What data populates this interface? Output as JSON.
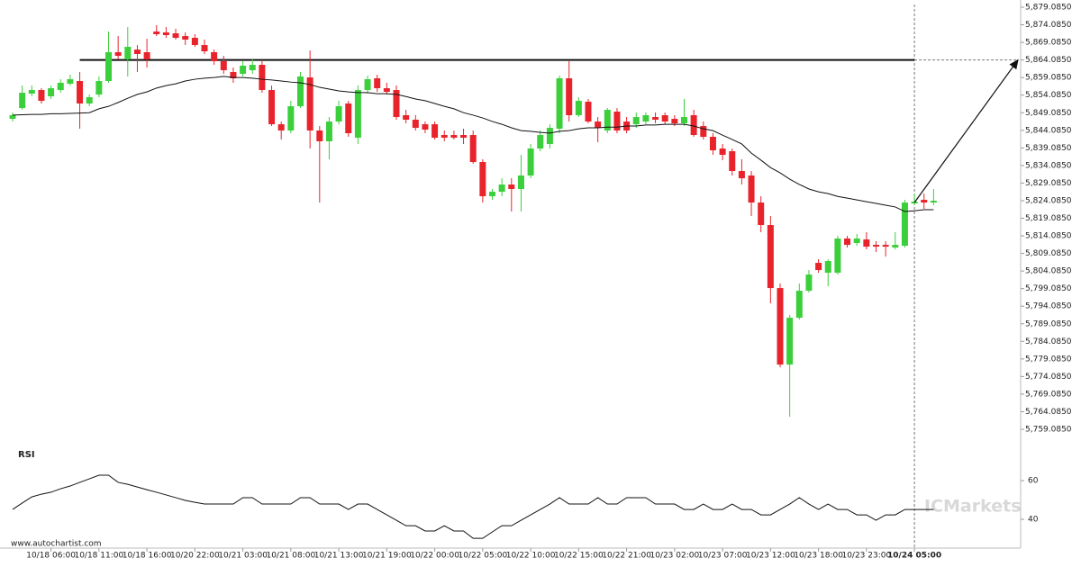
{
  "chart_data": [
    {
      "type": "candlestick",
      "categories": [
        null,
        null,
        null,
        null,
        "10/18 06:00",
        null,
        null,
        null,
        null,
        "10/18 11:00",
        null,
        null,
        null,
        null,
        "10/18 16:00",
        null,
        null,
        null,
        null,
        "10/20 22:00",
        null,
        null,
        null,
        null,
        "10/21 03:00",
        null,
        null,
        null,
        null,
        "10/21 08:00",
        null,
        null,
        null,
        null,
        "10/21 13:00",
        null,
        null,
        null,
        null,
        "10/21 19:00",
        null,
        null,
        null,
        null,
        "10/22 00:00",
        null,
        null,
        null,
        null,
        "10/22 05:00",
        null,
        null,
        null,
        null,
        "10/22 10:00",
        null,
        null,
        null,
        null,
        "10/22 15:00",
        null,
        null,
        null,
        null,
        "10/22 21:00",
        null,
        null,
        null,
        null,
        "10/23 02:00",
        null,
        null,
        null,
        null,
        "10/23 07:00",
        null,
        null,
        null,
        null,
        "10/23 12:00",
        null,
        null,
        null,
        null,
        "10/23 18:00",
        null,
        null,
        null,
        null,
        "10/23 23:00",
        null,
        null,
        null,
        null,
        "10/24 05:00",
        null,
        null
      ],
      "open": [
        5847.35,
        5850.42,
        5854.52,
        5855.54,
        5853.75,
        5855.54,
        5857.33,
        5858.1,
        5851.7,
        5854.26,
        5858.1,
        5866.29,
        5864.24,
        5867.05,
        5866.29,
        5872.17,
        5871.92,
        5871.66,
        5870.89,
        5870.38,
        5868.33,
        5866.29,
        5863.73,
        5860.66,
        5860.15,
        5861.17,
        5862.7,
        5855.54,
        5845.81,
        5844.03,
        5850.93,
        5859.12,
        5844.03,
        5840.96,
        5846.58,
        5851.7,
        5841.98,
        5855.54,
        5858.87,
        5856.05,
        5855.54,
        5848.38,
        5847.1,
        5845.81,
        5845.81,
        5842.75,
        5842.75,
        5842.75,
        5842.75,
        5835.07,
        5825.34,
        5826.62,
        5828.67,
        5827.39,
        5831.23,
        5838.91,
        5840.19,
        5844.54,
        5858.87,
        5848.38,
        5852.21,
        5846.58,
        5844.03,
        5849.4,
        5846.58,
        5845.81,
        5846.58,
        5847.86,
        5848.38,
        5847.35,
        5846.07,
        5848.38,
        5845.3,
        5842.24,
        5838.91,
        5838.14,
        5832.51,
        5831.23,
        5823.55,
        5817.16,
        5799.24,
        5777.49,
        5790.8,
        5798.48,
        5806.41,
        5803.6,
        5803.6,
        5813.32,
        5812.04,
        5813.06,
        5811.52,
        5811.52,
        5810.76,
        5811.27,
        5823.3,
        5824.32,
        5823.55
      ],
      "high": [
        5849.14,
        5856.82,
        5856.82,
        5856.05,
        5856.82,
        5858.61,
        5859.89,
        5860.66,
        5854.26,
        5859.38,
        5872.17,
        5870.89,
        5873.45,
        5868.33,
        5870.13,
        5873.97,
        5873.45,
        5872.94,
        5871.92,
        5871.41,
        5869.87,
        5867.05,
        5865.26,
        5861.94,
        5863.73,
        5864.24,
        5863.73,
        5856.82,
        5846.58,
        5852.47,
        5860.66,
        5866.8,
        5845.3,
        5847.86,
        5852.47,
        5852.47,
        5856.82,
        5859.63,
        5859.89,
        5857.59,
        5856.82,
        5849.91,
        5848.38,
        5846.58,
        5846.58,
        5844.03,
        5844.03,
        5844.54,
        5844.03,
        5835.85,
        5827.39,
        5830.46,
        5830.46,
        5837.12,
        5840.19,
        5844.03,
        5845.81,
        5859.63,
        5863.73,
        5853.49,
        5852.98,
        5847.86,
        5850.42,
        5850.42,
        5847.86,
        5849.14,
        5849.14,
        5849.14,
        5849.14,
        5848.38,
        5852.98,
        5849.91,
        5846.58,
        5843.26,
        5840.19,
        5838.91,
        5835.85,
        5832.51,
        5825.34,
        5819.71,
        5800.52,
        5791.57,
        5800.52,
        5804.36,
        5807.43,
        5807.43,
        5814.08,
        5814.08,
        5814.6,
        5815.11,
        5812.55,
        5812.55,
        5815.11,
        5824.32,
        5826.11,
        5826.11,
        5827.39
      ],
      "low": [
        5846.58,
        5849.91,
        5853.75,
        5851.7,
        5852.98,
        5854.77,
        5856.82,
        5844.54,
        5850.93,
        5853.49,
        5857.59,
        5864.24,
        5859.38,
        5860.66,
        5861.94,
        5870.89,
        5870.38,
        5869.87,
        5868.33,
        5867.82,
        5865.78,
        5862.7,
        5860.15,
        5857.59,
        5859.38,
        5860.15,
        5854.77,
        5845.3,
        5841.47,
        5843.26,
        5850.42,
        5838.91,
        5823.55,
        5835.85,
        5845.81,
        5842.24,
        5840.19,
        5854.52,
        5855.03,
        5854.26,
        5847.1,
        5846.07,
        5844.03,
        5843.26,
        5841.47,
        5840.96,
        5841.47,
        5840.19,
        5834.56,
        5823.55,
        5824.32,
        5825.34,
        5820.99,
        5820.99,
        5830.46,
        5838.14,
        5838.91,
        5843.26,
        5846.58,
        5847.86,
        5846.07,
        5840.7,
        5843.26,
        5843.26,
        5843.26,
        5844.79,
        5845.81,
        5846.07,
        5845.81,
        5845.3,
        5845.3,
        5842.24,
        5841.47,
        5837.12,
        5835.58,
        5831.23,
        5828.67,
        5819.71,
        5815.11,
        5794.89,
        5776.72,
        5762.65,
        5790.28,
        5797.96,
        5803.6,
        5799.75,
        5803.08,
        5810.76,
        5811.27,
        5810.24,
        5809.48,
        5808.2,
        5810.24,
        5810.76,
        5822.78,
        5821.76,
        5822.78
      ],
      "close": [
        5848.38,
        5854.77,
        5855.54,
        5852.47,
        5856.05,
        5857.59,
        5858.61,
        5851.7,
        5853.49,
        5858.1,
        5866.29,
        5865.26,
        5867.82,
        5865.78,
        5864.24,
        5871.41,
        5871.15,
        5870.38,
        5869.87,
        5868.33,
        5866.54,
        5863.73,
        5861.17,
        5858.87,
        5862.45,
        5862.7,
        5855.54,
        5845.81,
        5844.03,
        5850.93,
        5859.38,
        5844.03,
        5840.96,
        5846.58,
        5850.93,
        5843.26,
        5855.54,
        5858.61,
        5856.05,
        5855.03,
        5847.86,
        5847.1,
        5844.79,
        5844.28,
        5841.98,
        5841.98,
        5841.98,
        5841.98,
        5835.07,
        5825.34,
        5826.62,
        5828.67,
        5827.39,
        5831.23,
        5838.91,
        5842.75,
        5844.79,
        5858.87,
        5848.38,
        5852.47,
        5846.58,
        5844.79,
        5849.91,
        5844.03,
        5844.03,
        5847.86,
        5848.38,
        5847.1,
        5846.58,
        5846.07,
        5847.86,
        5842.75,
        5842.24,
        5838.4,
        5837.12,
        5832.51,
        5830.46,
        5823.55,
        5817.16,
        5799.24,
        5777.49,
        5790.8,
        5798.48,
        5803.08,
        5804.36,
        5806.92,
        5813.32,
        5811.52,
        5813.32,
        5811.01,
        5811.01,
        5811.01,
        5811.52,
        5823.55,
        5823.81,
        5823.55,
        5824.06
      ],
      "overlay": {
        "color": "#111111",
        "values": [
          5848.4,
          5848.5,
          5848.6,
          5848.6,
          5848.8,
          5848.8,
          5848.9,
          5849.0,
          5849.1,
          5850.2,
          5850.9,
          5852.0,
          5853.2,
          5854.3,
          5855.0,
          5856.1,
          5856.8,
          5857.3,
          5858.1,
          5858.6,
          5858.9,
          5859.1,
          5859.4,
          5859.1,
          5859.1,
          5858.9,
          5858.6,
          5858.4,
          5858.1,
          5857.8,
          5857.6,
          5857.1,
          5856.3,
          5855.8,
          5855.3,
          5855.0,
          5854.8,
          5854.8,
          5854.5,
          5854.5,
          5854.3,
          5853.7,
          5853.0,
          5852.5,
          5851.7,
          5850.9,
          5850.2,
          5849.1,
          5848.4,
          5847.6,
          5846.6,
          5845.8,
          5844.8,
          5844.0,
          5843.8,
          5843.5,
          5843.3,
          5843.8,
          5844.0,
          5844.5,
          5844.8,
          5844.8,
          5845.0,
          5845.0,
          5845.3,
          5845.3,
          5845.6,
          5845.6,
          5845.8,
          5845.8,
          5845.8,
          5845.3,
          5844.5,
          5844.0,
          5842.7,
          5841.5,
          5840.2,
          5837.6,
          5835.6,
          5833.5,
          5832.0,
          5830.2,
          5828.7,
          5827.4,
          5826.6,
          5826.1,
          5825.3,
          5824.8,
          5824.3,
          5823.8,
          5823.3,
          5822.8,
          5822.3,
          5821.0,
          5821.2,
          5821.5,
          5821.5
        ]
      },
      "level": 5864.085,
      "colors": {
        "up": "#3ccf3c",
        "down": "#e8232b"
      },
      "ylim": [
        5759.085,
        5879.085
      ],
      "yticks": [
        {
          "value": 5879.085,
          "label": "5,879.0850"
        },
        {
          "value": 5874.085,
          "label": "5,874.0850"
        },
        {
          "value": 5869.085,
          "label": "5,869.0850"
        },
        {
          "value": 5864.085,
          "label": "5,864.0850"
        },
        {
          "value": 5859.085,
          "label": "5,859.0850"
        },
        {
          "value": 5854.085,
          "label": "5,854.0850"
        },
        {
          "value": 5849.085,
          "label": "5,849.0850"
        },
        {
          "value": 5844.085,
          "label": "5,844.0850"
        },
        {
          "value": 5839.085,
          "label": "5,839.0850"
        },
        {
          "value": 5834.085,
          "label": "5,834.0850"
        },
        {
          "value": 5829.085,
          "label": "5,829.0850"
        },
        {
          "value": 5824.085,
          "label": "5,824.0850"
        },
        {
          "value": 5819.085,
          "label": "5,819.0850"
        },
        {
          "value": 5814.085,
          "label": "5,814.0850"
        },
        {
          "value": 5809.085,
          "label": "5,809.0850"
        },
        {
          "value": 5804.085,
          "label": "5,804.0850"
        },
        {
          "value": 5799.085,
          "label": "5,799.0850"
        },
        {
          "value": 5794.085,
          "label": "5,794.0850"
        },
        {
          "value": 5789.085,
          "label": "5,789.0850"
        },
        {
          "value": 5784.085,
          "label": "5,784.0850"
        },
        {
          "value": 5779.085,
          "label": "5,779.0850"
        },
        {
          "value": 5774.085,
          "label": "5,774.0850"
        },
        {
          "value": 5769.085,
          "label": "5,769.0850"
        },
        {
          "value": 5764.085,
          "label": "5,764.0850"
        },
        {
          "value": 5759.085,
          "label": "5,759.0850"
        }
      ]
    },
    {
      "type": "line",
      "title": "RSI",
      "color": "#111111",
      "values": [
        45.1,
        48.4,
        51.6,
        53.0,
        54.0,
        55.8,
        57.2,
        59.1,
        60.9,
        62.8,
        62.8,
        59.1,
        58.1,
        56.7,
        55.3,
        54.0,
        52.6,
        51.2,
        49.8,
        48.8,
        47.9,
        47.9,
        47.9,
        47.9,
        51.2,
        51.2,
        47.9,
        47.9,
        47.9,
        47.9,
        51.2,
        51.2,
        47.9,
        47.9,
        47.9,
        45.1,
        47.9,
        47.9,
        45.1,
        42.3,
        39.5,
        36.7,
        36.7,
        34.0,
        34.0,
        36.7,
        34.0,
        34.0,
        30.2,
        30.2,
        33.5,
        36.7,
        36.7,
        39.5,
        42.3,
        45.1,
        47.9,
        51.2,
        47.9,
        47.9,
        47.9,
        51.2,
        47.9,
        47.9,
        51.2,
        51.2,
        51.2,
        47.9,
        47.9,
        47.9,
        45.1,
        45.1,
        47.9,
        45.1,
        45.1,
        47.9,
        45.1,
        45.1,
        42.3,
        42.3,
        45.1,
        47.9,
        51.2,
        47.9,
        45.1,
        47.9,
        45.1,
        45.1,
        42.3,
        42.3,
        39.5,
        42.3,
        42.3,
        45.1,
        45.1,
        45.1,
        45.1
      ],
      "ylim": [
        27,
        76
      ],
      "yticks": [
        40,
        60
      ]
    }
  ],
  "watermark": "ICMarkets",
  "source": "www.autochartist.com"
}
